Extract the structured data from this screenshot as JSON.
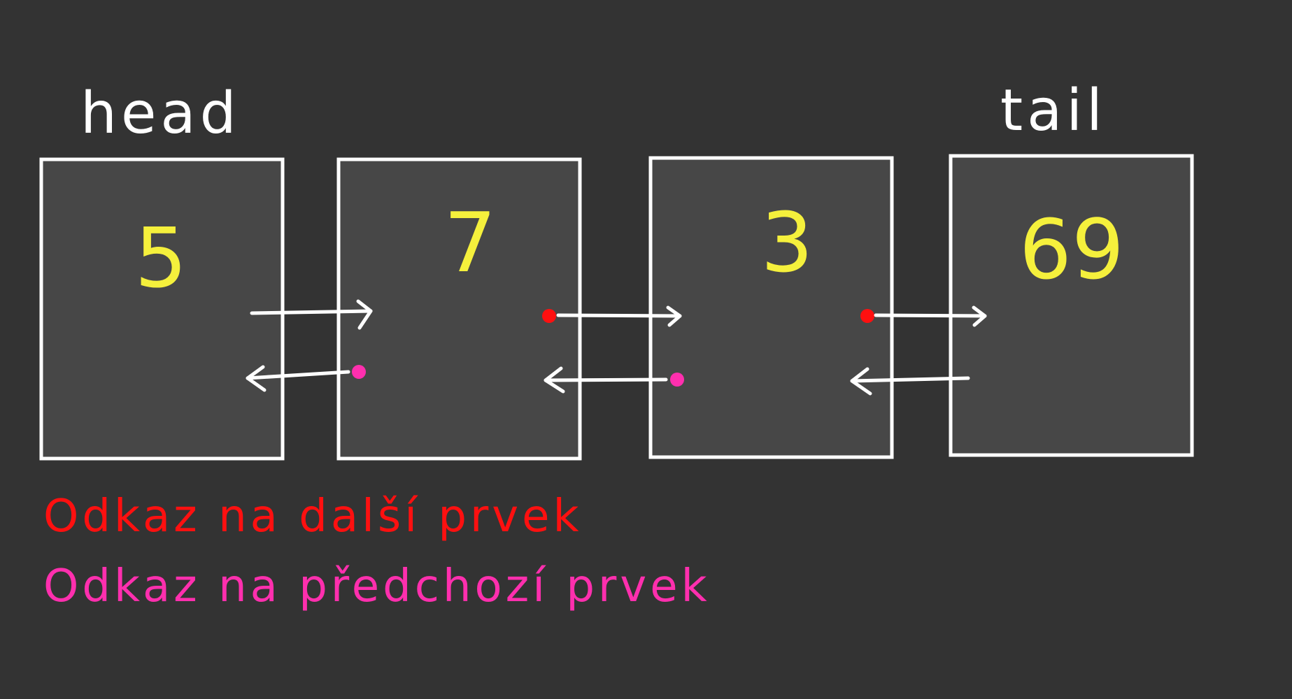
{
  "diagram": {
    "head_label": "head",
    "tail_label": "tail",
    "nodes": [
      {
        "value": "5"
      },
      {
        "value": "7"
      },
      {
        "value": "3"
      },
      {
        "value": "69"
      }
    ],
    "legend": {
      "next_text": "Odkaz na další prvek",
      "prev_text": "Odkaz na předchozí prvek"
    },
    "colors": {
      "background": "#333333",
      "node_fill": "#474747",
      "node_border": "#ffffff",
      "value": "#f5f03c",
      "next_dot": "#ff1010",
      "prev_dot": "#ff2fae"
    }
  }
}
